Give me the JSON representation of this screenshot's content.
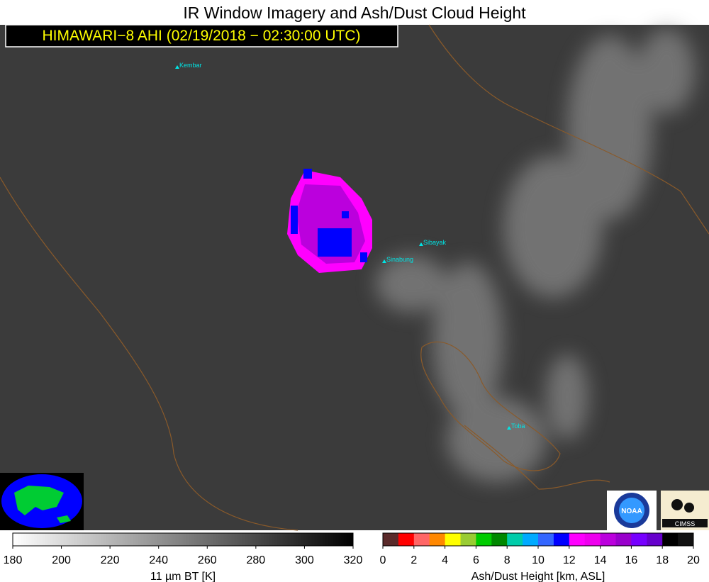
{
  "title": "IR Window Imagery and Ash/Dust Cloud Height",
  "subtitle": "HIMAWARI−8 AHI (02/19/2018 − 02:30:00 UTC)",
  "volcanoes": [
    {
      "name": "Kembar"
    },
    {
      "name": "Sibayak"
    },
    {
      "name": "Sinabung"
    },
    {
      "name": "Toba"
    }
  ],
  "logos": {
    "noaa": "NOAA",
    "cimss": "CIMSS"
  },
  "bt_colorbar": {
    "label": "11 µm BT [K]",
    "range": [
      180,
      320
    ],
    "ticks": [
      180,
      200,
      220,
      240,
      260,
      280,
      300,
      320
    ],
    "colors": [
      "#ffffff",
      "#000000"
    ]
  },
  "height_colorbar": {
    "label": "Ash/Dust Height [km, ASL]",
    "range": [
      0,
      20
    ],
    "ticks": [
      0,
      2,
      4,
      6,
      8,
      10,
      12,
      14,
      16,
      18,
      20
    ],
    "colors": [
      "#5a2a2a",
      "#ff0000",
      "#ff6666",
      "#ff8800",
      "#ffff00",
      "#99cc33",
      "#00cc00",
      "#008800",
      "#00ccaa",
      "#00aaff",
      "#3366ff",
      "#0000ff",
      "#ff00ff",
      "#ee00ee",
      "#bb00dd",
      "#9900cc",
      "#7700ff",
      "#6600cc",
      "#000000",
      "#111111"
    ]
  }
}
